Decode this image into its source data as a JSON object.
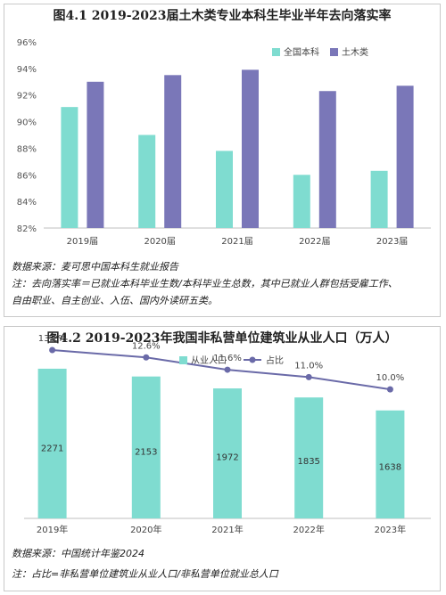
{
  "chart_data": [
    {
      "type": "bar",
      "title": "图4.1 2019-2023届土木类专业本科生毕业半年去向落实率",
      "categories": [
        "2019届",
        "2020届",
        "2021届",
        "2022届",
        "2023届"
      ],
      "series": [
        {
          "name": "全国本科",
          "values": [
            91.1,
            89.0,
            87.8,
            86.0,
            86.3
          ],
          "color": "#7fdcd0"
        },
        {
          "name": "土木类",
          "values": [
            93.0,
            93.5,
            93.9,
            92.3,
            92.7
          ],
          "color": "#7a77b8"
        }
      ],
      "ylim": [
        82,
        96
      ],
      "yticks": [
        "82%",
        "84%",
        "86%",
        "88%",
        "90%",
        "92%",
        "94%",
        "96%"
      ],
      "ytick_values": [
        82,
        84,
        86,
        88,
        90,
        92,
        94,
        96
      ],
      "legend_position": "top-right",
      "grid": false,
      "notes": [
        "数据来源：麦可思中国本科生就业报告",
        "注：去向落实率＝已就业本科毕业生数/本科毕业生总数，其中已就业人群包括受雇工作、",
        "自由职业、自主创业、入伍、国内外读研五类。"
      ]
    },
    {
      "type": "bar",
      "title": "图4.2 2019-2023年我国非私营单位建筑业从业人口（万人）",
      "categories": [
        "2019年",
        "2020年",
        "2021年",
        "2022年",
        "2023年"
      ],
      "series": [
        {
          "name": "从业人口",
          "values": [
            2271,
            2153,
            1972,
            1835,
            1638
          ],
          "labels": [
            "2271",
            "2153",
            "1972",
            "1835",
            "1638"
          ],
          "color": "#7fdcd0"
        },
        {
          "name": "占比",
          "values": [
            13.2,
            12.6,
            11.6,
            11.0,
            10.0
          ],
          "labels": [
            "13.2%",
            "12.6%",
            "11.6%",
            "11.0%",
            "10.0%"
          ],
          "color": "#6a6aa8"
        }
      ],
      "legend_position": "top-center",
      "grid": false,
      "notes": [
        "数据来源：中国统计年鉴2024",
        "注：占比=非私营单位建筑业从业人口/非私营单位就业总人口"
      ]
    }
  ]
}
